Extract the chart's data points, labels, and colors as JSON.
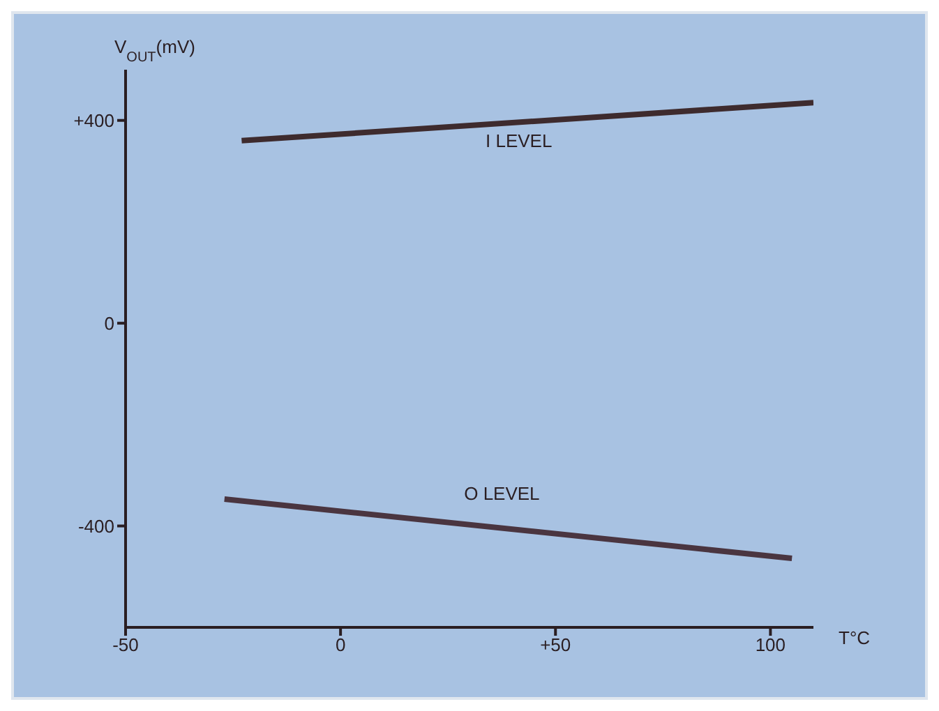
{
  "chart_data": {
    "type": "line",
    "ylabel": "V$_{OUT}$(mV)",
    "xlabel": "T°C",
    "xlim": [
      -50,
      110
    ],
    "xticks": [
      {
        "value": -50,
        "label": "-50"
      },
      0,
      {
        "value": 50,
        "label": "+50"
      },
      100
    ],
    "ylim": [
      -600,
      500
    ],
    "yticks": [
      {
        "value": -400,
        "label": "-400"
      },
      0,
      {
        "value": 400,
        "label": "+400"
      }
    ],
    "grid": false,
    "legend": false,
    "marker": "none",
    "line_style": "solid",
    "series": [
      {
        "name": "I LEVEL",
        "color": "#3e2b2e",
        "x": [
          -23,
          110
        ],
        "values": [
          360,
          435
        ]
      },
      {
        "name": "O LEVEL",
        "color": "#4a3540",
        "x": [
          -27,
          105
        ],
        "values": [
          -347,
          -464
        ]
      }
    ]
  }
}
